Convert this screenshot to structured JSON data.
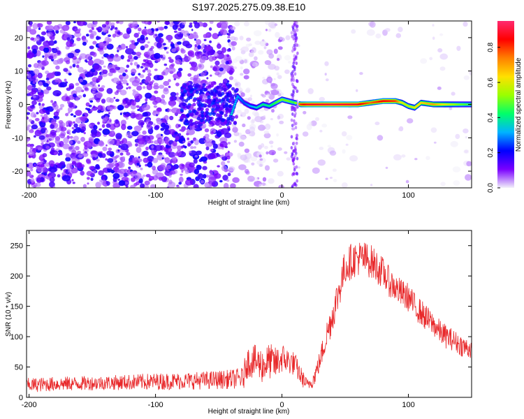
{
  "title": "S197.2025.275.09.38.E10",
  "colorbar": {
    "label": "Normalized spectral amplitude",
    "ticks": [
      "0.0",
      "0.2",
      "0.4",
      "0.6",
      "0.8"
    ],
    "tick_values": [
      0.0,
      0.2,
      0.4,
      0.6,
      0.8
    ],
    "range": [
      0,
      0.95
    ],
    "colormap": [
      "#f2f0fa",
      "#7a00ff",
      "#0000ff",
      "#00b4ff",
      "#00ff6a",
      "#9aff00",
      "#ffe000",
      "#ff8000",
      "#ff0000",
      "#ff2a70"
    ]
  },
  "chart_data": [
    {
      "type": "heatmap",
      "title": "S197.2025.275.09.38.E10",
      "xlabel": "Height of straight line (km)",
      "ylabel": "Frequency (Hz)",
      "xlim": [
        -202,
        150
      ],
      "ylim": [
        -25,
        25
      ],
      "xticks": [
        -200,
        -100,
        0,
        100
      ],
      "xtick_labels": [
        "-200",
        "-100",
        "0",
        "100"
      ],
      "yticks": [
        -20,
        -10,
        0,
        10,
        20
      ],
      "ytick_labels": [
        "-20",
        "-10",
        "0",
        "10",
        "20"
      ],
      "ridge": {
        "description": "dominant spectral line near 0 Hz",
        "x": [
          -40,
          -35,
          -30,
          -25,
          -20,
          -15,
          -10,
          -5,
          0,
          5,
          10,
          15,
          20,
          40,
          60,
          70,
          80,
          90,
          95,
          100,
          105,
          110,
          120,
          130,
          140,
          150
        ],
        "y": [
          -3,
          2.5,
          0.5,
          -0.5,
          -1,
          0,
          -0.5,
          0.5,
          1.5,
          1,
          0.5,
          0,
          0,
          0,
          0,
          0.5,
          1,
          1,
          0.5,
          -0.5,
          -1,
          0.5,
          0,
          0,
          0,
          0
        ],
        "amplitude": [
          0.35,
          0.3,
          0.25,
          0.3,
          0.35,
          0.4,
          0.4,
          0.45,
          0.5,
          0.5,
          0.45,
          0.8,
          0.88,
          0.9,
          0.88,
          0.75,
          0.85,
          0.8,
          0.6,
          0.55,
          0.6,
          0.65,
          0.7,
          0.6,
          0.5,
          0.45
        ]
      },
      "noise_regions": [
        {
          "x_range": [
            -202,
            -40
          ],
          "level": "high",
          "amplitude": [
            0.05,
            0.2
          ]
        },
        {
          "x_range": [
            -40,
            150
          ],
          "level": "low",
          "amplitude": [
            0.0,
            0.1
          ]
        }
      ],
      "vertical_stripe": {
        "x": 10,
        "amplitude": [
          0.05,
          0.15
        ]
      }
    },
    {
      "type": "line",
      "xlabel": "Height of straight line (km)",
      "ylabel": "SNR (10 * v/v)",
      "xlim": [
        -202,
        150
      ],
      "ylim": [
        0,
        275
      ],
      "xticks": [
        -200,
        -100,
        0,
        100
      ],
      "xtick_labels": [
        "-200",
        "-100",
        "0",
        "100"
      ],
      "yticks": [
        0,
        50,
        100,
        150,
        200,
        250
      ],
      "ytick_labels": [
        "0",
        "50",
        "100",
        "150",
        "200",
        "250"
      ],
      "color": "#e8282a",
      "series": [
        {
          "name": "SNR",
          "x": [
            -202,
            -180,
            -160,
            -140,
            -120,
            -100,
            -80,
            -60,
            -40,
            -30,
            -29,
            -25,
            -20,
            -15,
            -10,
            -5,
            0,
            5,
            10,
            15,
            20,
            25,
            30,
            35,
            40,
            45,
            50,
            55,
            60,
            65,
            70,
            75,
            80,
            85,
            90,
            95,
            100,
            105,
            110,
            115,
            120,
            125,
            130,
            135,
            140,
            145,
            150
          ],
          "y": [
            20,
            22,
            23,
            24,
            25,
            26,
            27,
            28,
            30,
            32,
            55,
            60,
            58,
            52,
            60,
            55,
            65,
            60,
            55,
            35,
            20,
            30,
            60,
            100,
            135,
            175,
            215,
            225,
            230,
            228,
            225,
            215,
            205,
            190,
            180,
            170,
            165,
            150,
            140,
            128,
            120,
            108,
            100,
            95,
            88,
            82,
            80
          ],
          "noise_amplitude": [
            12,
            12,
            12,
            12,
            13,
            14,
            14,
            15,
            16,
            18,
            25,
            28,
            28,
            30,
            30,
            28,
            25,
            22,
            20,
            16,
            10,
            14,
            18,
            25,
            28,
            30,
            30,
            30,
            30,
            30,
            28,
            28,
            26,
            25,
            24,
            24,
            24,
            22,
            22,
            22,
            20,
            20,
            20,
            18,
            18,
            18,
            18
          ]
        }
      ]
    }
  ]
}
